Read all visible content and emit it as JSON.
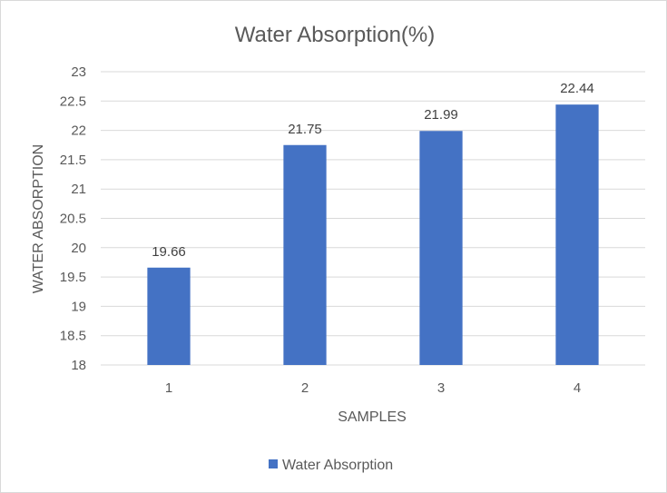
{
  "chart_data": {
    "type": "bar",
    "title": "Water Absorption(%)",
    "xlabel": "SAMPLES",
    "ylabel": "WATER ABSORPTION",
    "categories": [
      "1",
      "2",
      "3",
      "4"
    ],
    "series": [
      {
        "name": "Water Absorption",
        "values": [
          19.66,
          21.75,
          21.99,
          22.44
        ],
        "color": "#4472c4"
      }
    ],
    "ylim": [
      18,
      23
    ],
    "ytick_step": 0.5,
    "yticks": [
      "18",
      "18.5",
      "19",
      "19.5",
      "20",
      "20.5",
      "21",
      "21.5",
      "22",
      "22.5",
      "23"
    ],
    "data_labels": [
      "19.66",
      "21.75",
      "21.99",
      "22.44"
    ],
    "grid": true,
    "legend_position": "bottom",
    "colors": {
      "gridline": "#d9d9d9",
      "text": "#595959"
    }
  }
}
